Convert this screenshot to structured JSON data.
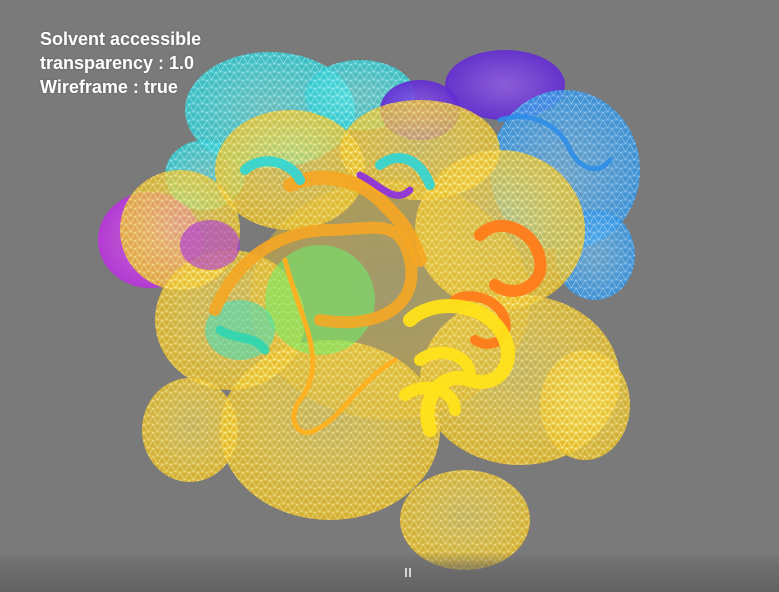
{
  "overlay": {
    "surface_type": "Solvent accessible",
    "transparency": "transparency : 1.0",
    "wireframe": "Wireframe : true"
  },
  "controls": {
    "pause_icon": "pause-icon"
  },
  "colors": {
    "background": "#7a7a7a",
    "magenta": "#cc33ee",
    "purple": "#7a33dd",
    "blue": "#3399ee",
    "cyan": "#33dddd",
    "green": "#55ee55",
    "yellow": "#ffdd22",
    "orange": "#ff9922",
    "dark_orange": "#ff7711"
  }
}
